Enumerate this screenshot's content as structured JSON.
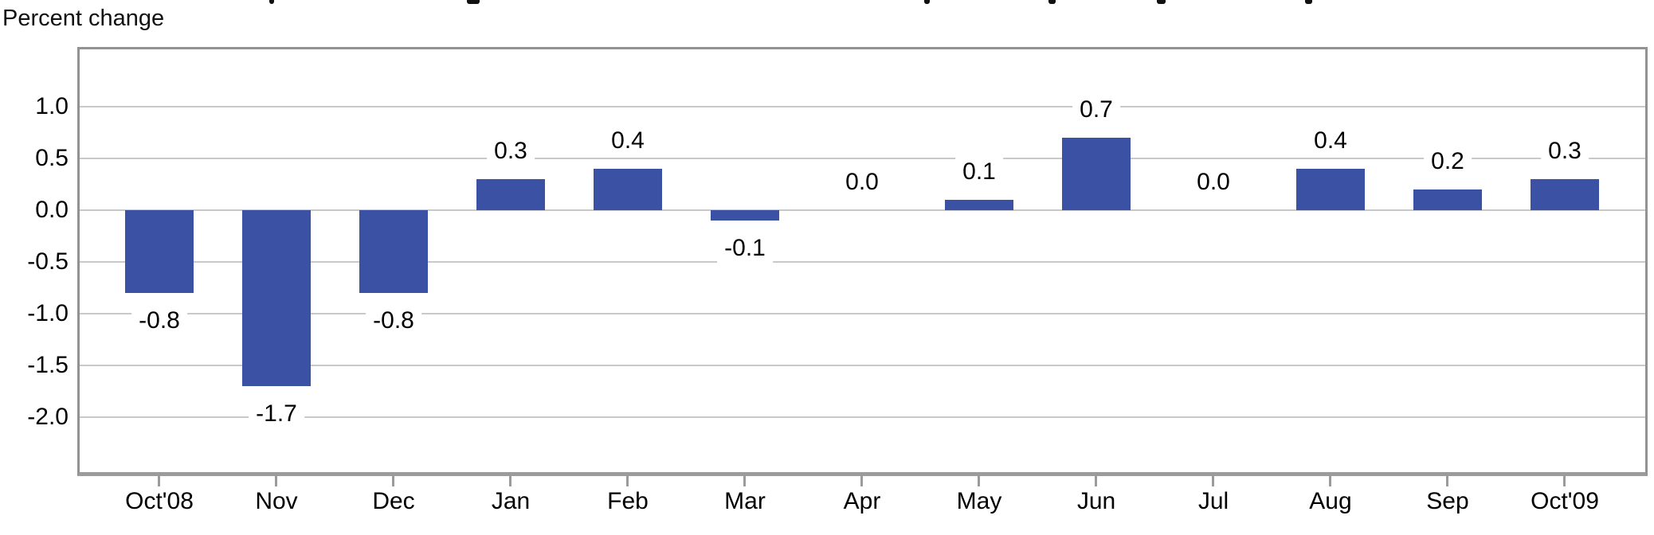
{
  "chart_data": {
    "type": "bar",
    "ylabel": "Percent change",
    "categories": [
      "Oct'08",
      "Nov",
      "Dec",
      "Jan",
      "Feb",
      "Mar",
      "Apr",
      "May",
      "Jun",
      "Jul",
      "Aug",
      "Sep",
      "Oct'09"
    ],
    "values": [
      -0.8,
      -1.7,
      -0.8,
      0.3,
      0.4,
      -0.1,
      0.0,
      0.1,
      0.7,
      0.0,
      0.4,
      0.2,
      0.3
    ],
    "value_labels": [
      "-0.8",
      "-1.7",
      "-0.8",
      "0.3",
      "0.4",
      "-0.1",
      "0.0",
      "0.1",
      "0.7",
      "0.0",
      "0.4",
      "0.2",
      "0.3"
    ],
    "yticks": [
      {
        "v": 1.0,
        "label": "1.0"
      },
      {
        "v": 0.5,
        "label": "0.5"
      },
      {
        "v": 0.0,
        "label": "0.0"
      },
      {
        "v": -0.5,
        "label": "-0.5"
      },
      {
        "v": -1.0,
        "label": "-1.0"
      },
      {
        "v": -1.5,
        "label": "-1.5"
      },
      {
        "v": -2.0,
        "label": "-2.0"
      }
    ],
    "ylim": [
      -2.53,
      1.55
    ],
    "grid": true,
    "legend": false,
    "bar_color": "#3B52A4",
    "gridline_color": "#C9C9C9",
    "axis_color": "#9B9B9B",
    "text_color": "#000000"
  }
}
